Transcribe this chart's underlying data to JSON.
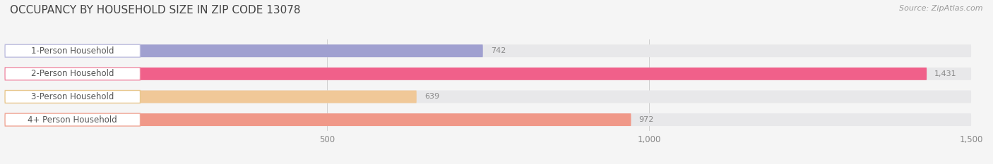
{
  "title": "OCCUPANCY BY HOUSEHOLD SIZE IN ZIP CODE 13078",
  "source": "Source: ZipAtlas.com",
  "categories": [
    "1-Person Household",
    "2-Person Household",
    "3-Person Household",
    "4+ Person Household"
  ],
  "values": [
    742,
    1431,
    639,
    972
  ],
  "bar_colors": [
    "#a0a0d0",
    "#f0608a",
    "#f0c898",
    "#f09888"
  ],
  "bar_bg_color": "#e8e8ea",
  "label_bg_color": "#ffffff",
  "label_border_colors": [
    "#c0c0e0",
    "#f090a8",
    "#e8c890",
    "#f0a898"
  ],
  "xlim": [
    0,
    1500
  ],
  "xticks": [
    500,
    1000,
    1500
  ],
  "background_color": "#f5f5f5",
  "title_fontsize": 11,
  "source_fontsize": 8,
  "bar_height": 0.55,
  "value_fontsize": 8,
  "label_fontsize": 8.5
}
